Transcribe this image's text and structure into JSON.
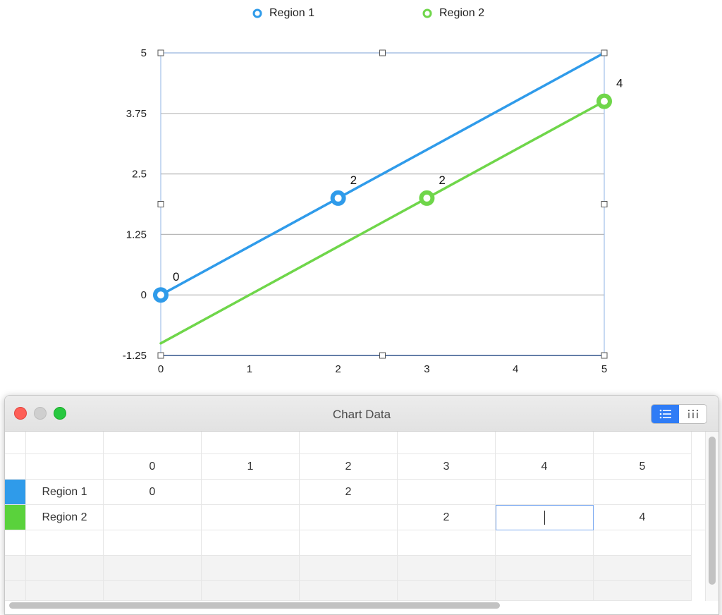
{
  "chart_data": {
    "type": "line",
    "legend_position": "top",
    "series": [
      {
        "name": "Region 1",
        "color": "#2f9bea",
        "points": [
          [
            0,
            0
          ],
          [
            2,
            2
          ],
          [
            5,
            5
          ]
        ],
        "labels": [
          {
            "x": 0,
            "y": 0,
            "text": "0"
          },
          {
            "x": 2,
            "y": 2,
            "text": "2"
          }
        ]
      },
      {
        "name": "Region 2",
        "color": "#6fd64a",
        "points": [
          [
            0,
            -1
          ],
          [
            3,
            2
          ],
          [
            5,
            4
          ]
        ],
        "labels": [
          {
            "x": 3,
            "y": 2,
            "text": "2"
          },
          {
            "x": 5,
            "y": 4,
            "text": "4"
          }
        ]
      }
    ],
    "markers": [
      {
        "series": 0,
        "x": 0,
        "y": 0
      },
      {
        "series": 0,
        "x": 2,
        "y": 2
      },
      {
        "series": 1,
        "x": 3,
        "y": 2
      },
      {
        "series": 1,
        "x": 5,
        "y": 4
      }
    ],
    "xlim": [
      0,
      5
    ],
    "ylim": [
      -1.25,
      5
    ],
    "x_ticks": [
      "0",
      "1",
      "2",
      "3",
      "4",
      "5"
    ],
    "y_ticks": [
      "5",
      "3.75",
      "2.5",
      "1.25",
      "0",
      "-1.25"
    ],
    "grid": true,
    "title": "",
    "xlabel": "",
    "ylabel": ""
  },
  "legend": [
    {
      "label": "Region 1",
      "color": "#2f9bea"
    },
    {
      "label": "Region 2",
      "color": "#6fd64a"
    }
  ],
  "window": {
    "title": "Chart Data",
    "view_buttons": [
      "list-view-icon",
      "column-view-icon"
    ]
  },
  "table": {
    "columns": [
      "0",
      "1",
      "2",
      "3",
      "4",
      "5"
    ],
    "rows": [
      {
        "label": "Region 1",
        "color": "#2f9bea",
        "cells": [
          "0",
          "",
          "2",
          "",
          "",
          ""
        ]
      },
      {
        "label": "Region 2",
        "color": "#5ad23c",
        "cells": [
          "",
          "",
          "",
          "2",
          "",
          "4"
        ]
      }
    ]
  }
}
